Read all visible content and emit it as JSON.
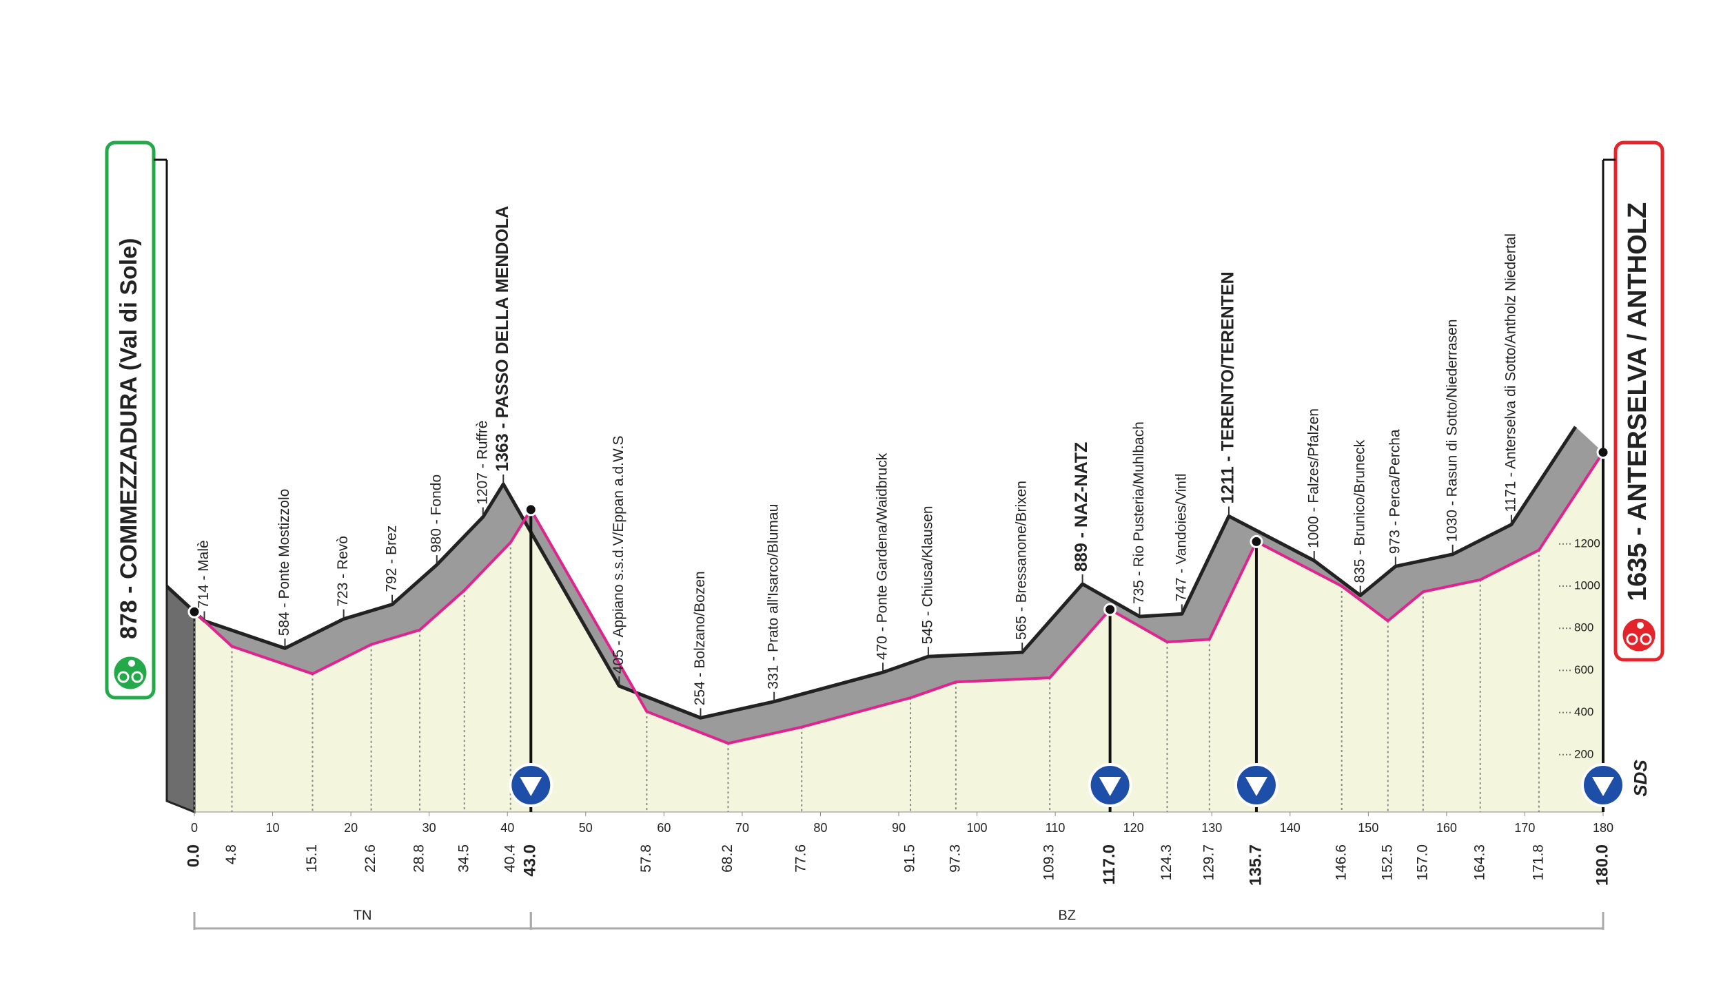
{
  "chart_data": {
    "type": "profile",
    "x": [
      0,
      4.8,
      15.1,
      22.6,
      28.8,
      34.5,
      40.4,
      43.0,
      57.8,
      68.2,
      77.6,
      91.5,
      97.3,
      109.3,
      117.0,
      124.3,
      129.7,
      135.7,
      146.6,
      152.5,
      157.0,
      164.3,
      171.8,
      180.0
    ],
    "x_labels": [
      "0.0",
      "4.8",
      "15.1",
      "22.6",
      "28.8",
      "34.5",
      "40.4",
      "43.0",
      "57.8",
      "68.2",
      "77.6",
      "91.5",
      "97.3",
      "109.3",
      "117.0",
      "124.3",
      "129.7",
      "135.7",
      "146.6",
      "152.5",
      "157.0",
      "164.3",
      "171.8",
      "180.0"
    ],
    "values": [
      878,
      714,
      584,
      723,
      792,
      980,
      1207,
      1363,
      405,
      254,
      331,
      470,
      545,
      565,
      889,
      735,
      747,
      1211,
      1000,
      835,
      973,
      1030,
      1171,
      1635
    ],
    "value_labels": [
      "878 - COMMEZZADURA (Val di Sole)",
      "714 - Malè",
      "584 - Ponte Mostizzolo",
      "723 - Revò",
      "792 - Brez",
      "980 - Fondo",
      "1207 - Ruffrè",
      "1363 - PASSO DELLA MENDOLA",
      "405 - Appiano s.s.d.V/Eppan a.d.W.S",
      "254 - Bolzano/Bozen",
      "331 - Prato all'Isarco/Blumau",
      "470 - Ponte Gardena/Waidbruck",
      "545 - Chiusa/Klausen",
      "565 - Bressanone/Brixen",
      "889 - NAZ-NATZ",
      "735 - Rio Pusteria/Muhlbach",
      "747 - Vandoies/Vintl",
      "1211 - TERENTO/TERENTEN",
      "1000 - Falzes/Pfalzen",
      "835 - Brunico/Bruneck",
      "973 - Perca/Percha",
      "1030 - Rasun di Sotto/Niederrasen",
      "1171 - Anterselva di Sotto/Antholz Niedertal",
      "1635 - ANTERSELVA / ANTHOLZ"
    ],
    "bold": [
      true,
      false,
      false,
      false,
      false,
      false,
      false,
      true,
      false,
      false,
      false,
      false,
      false,
      false,
      true,
      false,
      false,
      true,
      false,
      false,
      false,
      false,
      false,
      true
    ],
    "xlim": [
      0,
      180
    ],
    "xticks": [
      0,
      10,
      20,
      30,
      40,
      50,
      60,
      70,
      80,
      90,
      100,
      110,
      120,
      130,
      140,
      150,
      160,
      170,
      180
    ],
    "ylim": [
      0,
      2000
    ],
    "yticks": [
      200,
      400,
      600,
      800,
      1000,
      1200
    ],
    "regions": [
      {
        "name": "TN",
        "from": 0,
        "to": 43.0
      },
      {
        "name": "BZ",
        "from": 43.0,
        "to": 180.0
      }
    ],
    "logo": "SDS",
    "line_color": "#e0248e",
    "fill_color": "#f3f5dd",
    "band_color": "#9b9b9b",
    "start_color": "#23a94a",
    "finish_color": "#e3242b",
    "marker_color": "#1e4fa8"
  }
}
